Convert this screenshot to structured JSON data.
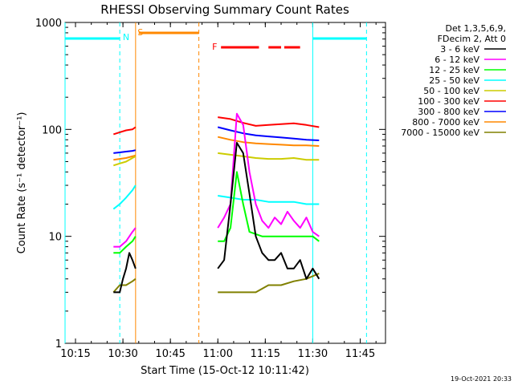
{
  "chart_data": {
    "type": "line",
    "title": "RHESSI Observing Summary Count Rates",
    "xlabel": "Start Time (15-Oct-12 10:11:42)",
    "ylabel": "Count Rate (s⁻¹ detector⁻¹)",
    "y_scale": "log",
    "ylim": [
      1,
      1000
    ],
    "xlim": [
      "10:11:42",
      "11:53:00"
    ],
    "x_ticks": [
      "10:15",
      "10:30",
      "10:45",
      "11:00",
      "11:15",
      "11:30",
      "11:45"
    ],
    "y_ticks": [
      "1",
      "10",
      "100",
      "1000"
    ],
    "legend_header": [
      "Det 1,3,5,6,9,",
      "FDecim 2, Att 0"
    ],
    "legend_position": "right",
    "series": [
      {
        "name": "3 - 6 keV",
        "color": "#000000",
        "segments": [
          {
            "x": [
              "10:27",
              "10:29",
              "10:30",
              "10:31",
              "10:32",
              "10:33",
              "10:34"
            ],
            "y": [
              3,
              3,
              4,
              5,
              7,
              6,
              5
            ]
          },
          {
            "x": [
              "11:00",
              "11:02",
              "11:04",
              "11:06",
              "11:08",
              "11:10",
              "11:12",
              "11:14",
              "11:16",
              "11:18",
              "11:20",
              "11:22",
              "11:24",
              "11:26",
              "11:28",
              "11:30",
              "11:32"
            ],
            "y": [
              5,
              6,
              20,
              75,
              60,
              25,
              10,
              7,
              6,
              6,
              7,
              5,
              5,
              6,
              4,
              5,
              4
            ]
          }
        ]
      },
      {
        "name": "6 - 12 keV",
        "color": "#ff00ff",
        "segments": [
          {
            "x": [
              "10:27",
              "10:29",
              "10:31",
              "10:33",
              "10:34"
            ],
            "y": [
              8,
              8,
              9,
              11,
              12
            ]
          },
          {
            "x": [
              "11:00",
              "11:02",
              "11:04",
              "11:06",
              "11:08",
              "11:10",
              "11:12",
              "11:14",
              "11:16",
              "11:18",
              "11:20",
              "11:22",
              "11:24",
              "11:26",
              "11:28",
              "11:30",
              "11:32"
            ],
            "y": [
              12,
              15,
              20,
              140,
              110,
              40,
              20,
              14,
              12,
              15,
              13,
              17,
              14,
              12,
              15,
              11,
              10
            ]
          }
        ]
      },
      {
        "name": "12 - 25 keV",
        "color": "#00ff00",
        "segments": [
          {
            "x": [
              "10:27",
              "10:29",
              "10:31",
              "10:33",
              "10:34"
            ],
            "y": [
              7,
              7,
              8,
              9,
              10
            ]
          },
          {
            "x": [
              "11:00",
              "11:02",
              "11:04",
              "11:06",
              "11:08",
              "11:10",
              "11:14",
              "11:18",
              "11:22",
              "11:26",
              "11:30",
              "11:32"
            ],
            "y": [
              9,
              9,
              12,
              40,
              20,
              11,
              10,
              10,
              10,
              10,
              10,
              9
            ]
          }
        ]
      },
      {
        "name": "25 - 50 keV",
        "color": "#00ffff",
        "segments": [
          {
            "x": [
              "10:27",
              "10:29",
              "10:31",
              "10:33",
              "10:34"
            ],
            "y": [
              18,
              20,
              23,
              27,
              30
            ]
          },
          {
            "x": [
              "11:00",
              "11:04",
              "11:08",
              "11:12",
              "11:16",
              "11:20",
              "11:24",
              "11:28",
              "11:32"
            ],
            "y": [
              24,
              23,
              22,
              22,
              21,
              21,
              21,
              20,
              20
            ]
          }
        ]
      },
      {
        "name": "50 - 100 keV",
        "color": "#cccc00",
        "segments": [
          {
            "x": [
              "10:27",
              "10:29",
              "10:31",
              "10:33",
              "10:34"
            ],
            "y": [
              46,
              48,
              50,
              54,
              56
            ]
          },
          {
            "x": [
              "11:00",
              "11:04",
              "11:08",
              "11:12",
              "11:16",
              "11:20",
              "11:24",
              "11:28",
              "11:32"
            ],
            "y": [
              60,
              58,
              56,
              54,
              53,
              53,
              54,
              52,
              52
            ]
          }
        ]
      },
      {
        "name": "100 - 300 keV",
        "color": "#ff0000",
        "segments": [
          {
            "x": [
              "10:27",
              "10:29",
              "10:31",
              "10:33",
              "10:34"
            ],
            "y": [
              90,
              94,
              98,
              100,
              105
            ]
          },
          {
            "x": [
              "11:00",
              "11:04",
              "11:08",
              "11:12",
              "11:16",
              "11:20",
              "11:24",
              "11:28",
              "11:32"
            ],
            "y": [
              130,
              125,
              115,
              108,
              110,
              112,
              114,
              110,
              105
            ]
          }
        ]
      },
      {
        "name": "300 - 800 keV",
        "color": "#0000ff",
        "segments": [
          {
            "x": [
              "10:27",
              "10:29",
              "10:31",
              "10:33",
              "10:34"
            ],
            "y": [
              60,
              61,
              62,
              63,
              64
            ]
          },
          {
            "x": [
              "11:00",
              "11:04",
              "11:08",
              "11:12",
              "11:16",
              "11:20",
              "11:24",
              "11:28",
              "11:32"
            ],
            "y": [
              105,
              98,
              92,
              88,
              86,
              84,
              82,
              80,
              79
            ]
          }
        ]
      },
      {
        "name": "800 - 7000 keV",
        "color": "#ff8800",
        "segments": [
          {
            "x": [
              "10:27",
              "10:29",
              "10:31",
              "10:33",
              "10:34"
            ],
            "y": [
              52,
              53,
              54,
              56,
              57
            ]
          },
          {
            "x": [
              "11:00",
              "11:04",
              "11:08",
              "11:12",
              "11:16",
              "11:20",
              "11:24",
              "11:28",
              "11:32"
            ],
            "y": [
              85,
              80,
              76,
              74,
              73,
              72,
              71,
              71,
              70
            ]
          }
        ]
      },
      {
        "name": "7000 - 15000 keV",
        "color": "#808000",
        "segments": [
          {
            "x": [
              "10:27",
              "10:29",
              "10:31",
              "10:33",
              "10:34"
            ],
            "y": [
              3,
              3.5,
              3.5,
              3.8,
              4
            ]
          },
          {
            "x": [
              "11:00",
              "11:04",
              "11:08",
              "11:12",
              "11:16",
              "11:20",
              "11:24",
              "11:28",
              "11:32"
            ],
            "y": [
              3,
              3,
              3,
              3,
              3.5,
              3.5,
              3.8,
              4,
              4.5
            ]
          }
        ]
      }
    ],
    "annotations": [
      {
        "label": "S",
        "x": "10:35",
        "color": "#ff8800"
      },
      {
        "label": "N",
        "x": "10:32",
        "color": "#00ffff"
      },
      {
        "label": "F",
        "x": "10:59",
        "color": "#ff0000"
      }
    ],
    "status_bars": [
      {
        "code": "night",
        "color": "#00ffff",
        "from": "10:11:42",
        "to": "10:29"
      },
      {
        "code": "night",
        "color": "#00ffff",
        "from": "11:30",
        "to": "11:47"
      },
      {
        "code": "saa",
        "color": "#ff8800",
        "from": "10:35",
        "to": "10:54"
      },
      {
        "code": "flare",
        "color": "#ff0000",
        "from": "11:01",
        "to": "11:13"
      },
      {
        "code": "flare",
        "color": "#ff0000",
        "from": "11:16",
        "to": "11:20"
      },
      {
        "code": "flare",
        "color": "#ff0000",
        "from": "11:21",
        "to": "11:26"
      }
    ],
    "vlines": [
      {
        "x": "10:29",
        "color": "#00ffff",
        "style": "dashed"
      },
      {
        "x": "10:34",
        "color": "#ff8800",
        "style": "solid"
      },
      {
        "x": "10:54",
        "color": "#ff8800",
        "style": "dashed"
      },
      {
        "x": "11:30",
        "color": "#00ffff",
        "style": "solid"
      },
      {
        "x": "11:47",
        "color": "#00ffff",
        "style": "dashed"
      },
      {
        "x": "10:11:42",
        "color": "#00ffff",
        "style": "solid"
      }
    ]
  },
  "footer": {
    "timestamp": "19-Oct-2021 20:33"
  }
}
